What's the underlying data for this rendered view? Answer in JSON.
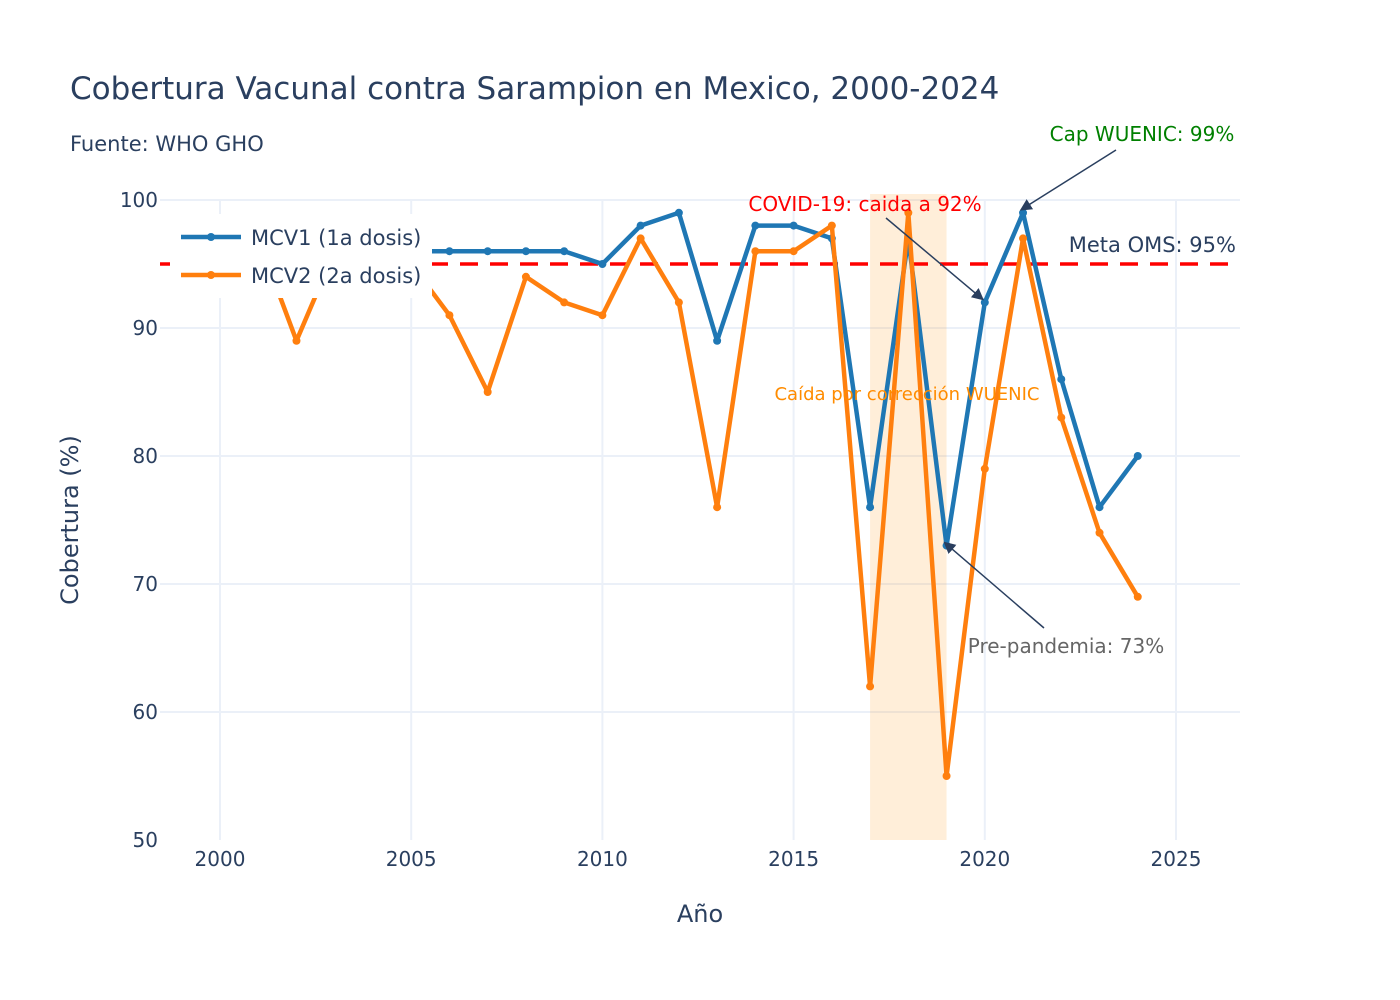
{
  "chart_data": {
    "type": "line",
    "title": "Cobertura Vacunal contra Sarampion en Mexico, 2000-2024",
    "subtitle": "Fuente: WHO GHO",
    "xlabel": "Año",
    "ylabel": "Cobertura (%)",
    "xlim": [
      1998.5,
      2026.6
    ],
    "ylim": [
      50,
      100
    ],
    "xticks": [
      2000,
      2005,
      2010,
      2015,
      2020,
      2025
    ],
    "yticks": [
      50,
      60,
      70,
      80,
      90,
      100
    ],
    "grid": true,
    "legend_position": "top-left",
    "x": [
      2000,
      2001,
      2002,
      2003,
      2004,
      2005,
      2006,
      2007,
      2008,
      2009,
      2010,
      2011,
      2012,
      2013,
      2014,
      2015,
      2016,
      2017,
      2018,
      2019,
      2020,
      2021,
      2022,
      2023,
      2024
    ],
    "series": [
      {
        "name": "MCV1 (1a dosis)",
        "color": "#1f77b4",
        "values": [
          96,
          96,
          96,
          96,
          96,
          96,
          96,
          96,
          96,
          96,
          95,
          98,
          99,
          89,
          98,
          98,
          97,
          76,
          97,
          73,
          92,
          99,
          86,
          76,
          80
        ]
      },
      {
        "name": "MCV2 (2a dosis)",
        "color": "#ff7f0e",
        "values": [
          96,
          97,
          89,
          96,
          95,
          95,
          91,
          85,
          94,
          92,
          91,
          97,
          92,
          76,
          96,
          96,
          98,
          62,
          99,
          55,
          79,
          97,
          83,
          74,
          69
        ]
      }
    ],
    "reference_line": {
      "y": 95,
      "label": "Meta OMS: 95%",
      "color": "#ff0000"
    },
    "shaded_region": {
      "x0": 2017,
      "x1": 2019,
      "label": "Caída por corrección WUENIC",
      "color": "#ff8c00"
    },
    "annotations": [
      {
        "text": "COVID-19: caida a 92%",
        "x": 2020,
        "y": 92,
        "color": "#ff0000"
      },
      {
        "text": "Cap WUENIC: 99%",
        "x": 2021,
        "y": 99,
        "color": "#008000"
      },
      {
        "text": "Pre-pandemia: 73%",
        "x": 2019,
        "y": 73,
        "color": "#666666"
      }
    ]
  }
}
